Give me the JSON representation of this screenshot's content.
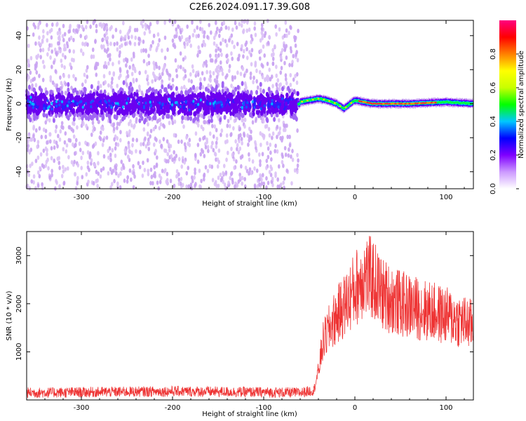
{
  "title": "C2E6.2024.091.17.39.G08",
  "chart_data": [
    {
      "type": "heatmap",
      "xlabel": "Height of straight line (km)",
      "ylabel": "Frequency (Hz)",
      "xlim": [
        -360,
        130
      ],
      "ylim": [
        -50,
        49
      ],
      "xticks": [
        -300,
        -200,
        -100,
        0,
        100
      ],
      "yticks": [
        -40,
        -20,
        0,
        20,
        40
      ],
      "colorbar": {
        "label": "Normalized spectral amplitude",
        "range": [
          0.0,
          1.0
        ],
        "ticks": [
          "0.0",
          "0.2",
          "0.4",
          "0.6",
          "0.8"
        ],
        "colors": [
          "#ffffff",
          "#cc99ff",
          "#7f00ff",
          "#0000ff",
          "#00c8ff",
          "#00ff00",
          "#c8ff00",
          "#ffff00",
          "#ff8000",
          "#ff0000",
          "#ff007f"
        ]
      },
      "ridge": [
        {
          "x": -60,
          "y": 1
        },
        {
          "x": -50,
          "y": 2
        },
        {
          "x": -40,
          "y": 3
        },
        {
          "x": -30,
          "y": 2
        },
        {
          "x": -20,
          "y": 0
        },
        {
          "x": -12,
          "y": -3
        },
        {
          "x": -5,
          "y": 0
        },
        {
          "x": 0,
          "y": 2
        },
        {
          "x": 20,
          "y": 0
        },
        {
          "x": 60,
          "y": 0
        },
        {
          "x": 100,
          "y": 1
        },
        {
          "x": 130,
          "y": 0
        }
      ],
      "noise_region_xmax": -62
    },
    {
      "type": "line",
      "xlabel": "Height of straight line (km)",
      "ylabel": "SNR (10 * v/v)",
      "xlim": [
        -360,
        130
      ],
      "ylim": [
        0,
        3500
      ],
      "xticks": [
        -300,
        -200,
        -100,
        0,
        100
      ],
      "yticks": [
        1000,
        2000,
        3000
      ],
      "color": "#ee3333",
      "series": [
        {
          "name": "",
          "x": [
            -360,
            -300,
            -250,
            -200,
            -150,
            -100,
            -60,
            -45,
            -40,
            -35,
            -25,
            -10,
            0,
            10,
            20,
            30,
            50,
            80,
            100,
            130
          ],
          "values": [
            150,
            160,
            170,
            180,
            170,
            160,
            150,
            200,
            600,
            1200,
            1600,
            2000,
            2300,
            2600,
            2500,
            2200,
            2000,
            1850,
            1750,
            1550
          ]
        }
      ]
    }
  ]
}
